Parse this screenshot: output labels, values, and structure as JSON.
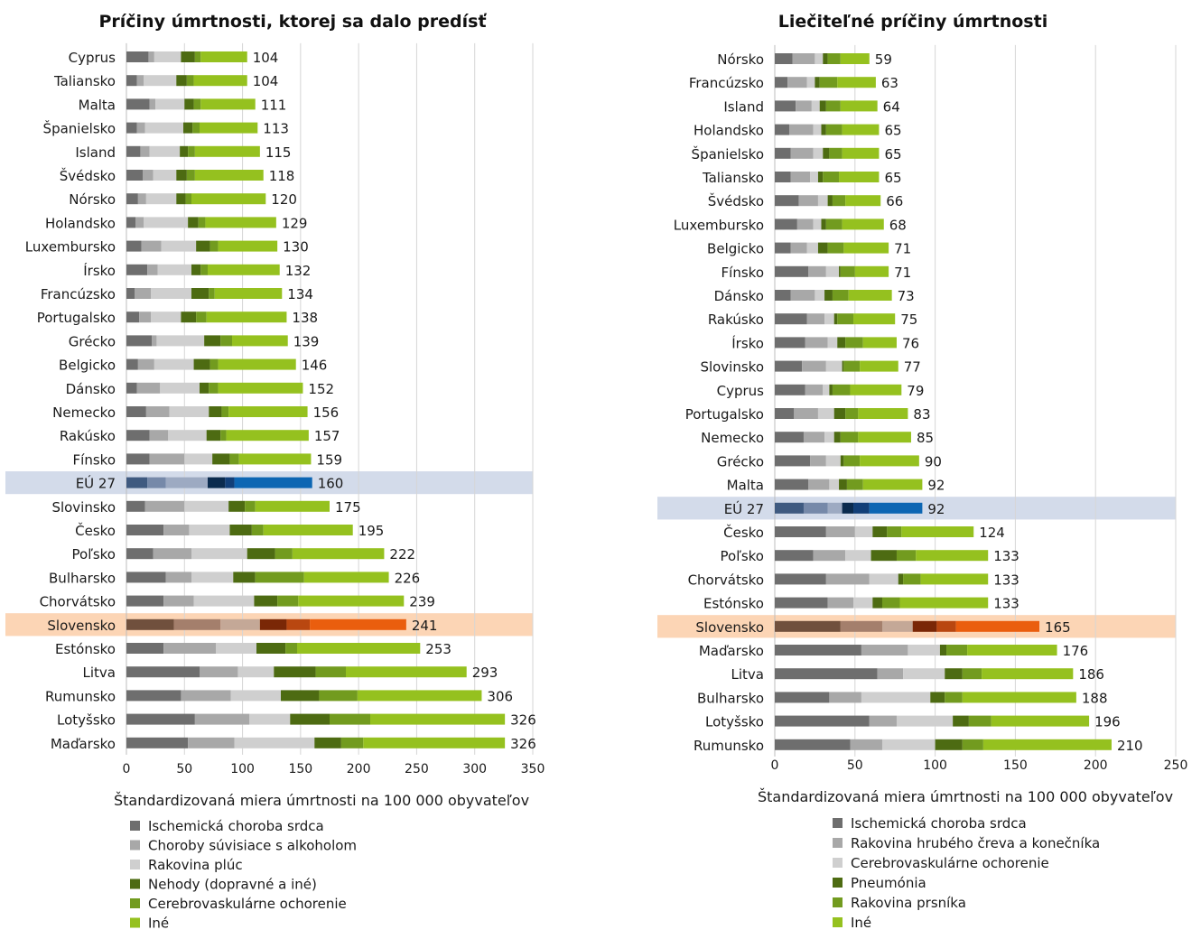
{
  "colors": {
    "series": [
      "#6e6e6e",
      "#a8a8a8",
      "#cfcfcf",
      "#4d6b12",
      "#729b1f",
      "#95c11f"
    ],
    "eu_series": [
      "#3f5a80",
      "#7689a9",
      "#9daac2",
      "#0b2b4e",
      "#123f78",
      "#0d66b3"
    ],
    "sk_series": [
      "#70503d",
      "#a47f6c",
      "#c4a897",
      "#7a2706",
      "#b94710",
      "#ea5e0e"
    ],
    "eu_band": "#d3dbea",
    "sk_band": "#fcd5b5",
    "grid": "#d6d6d6"
  },
  "chart_data": [
    {
      "type": "bar",
      "orientation": "horizontal",
      "stacked": true,
      "title": "Príčiny úmrtnosti, ktorej sa dalo predísť",
      "xlabel": "Štandardizovaná miera úmrtnosti na 100 000 obyvateľov",
      "xlim": [
        0,
        350
      ],
      "xticks": [
        0,
        50,
        100,
        150,
        200,
        250,
        300,
        350
      ],
      "grid": true,
      "legend": "bottom",
      "highlight": {
        "EÚ27": "eu",
        "Slovensko": "sk"
      },
      "categories": [
        "Cyprus",
        "Taliansko",
        "Malta",
        "Španielsko",
        "Island",
        "Švédsko",
        "Nórsko",
        "Holandsko",
        "Luxembursko",
        "Írsko",
        "Francúzsko",
        "Portugalsko",
        "Grécko",
        "Belgicko",
        "Dánsko",
        "Nemecko",
        "Rakúsko",
        "Fínsko",
        "EÚ27",
        "Slovinsko",
        "Česko",
        "Poľsko",
        "Bulharsko",
        "Chorvátsko",
        "Slovensko",
        "Estónsko",
        "Litva",
        "Rumunsko",
        "Lotyšsko",
        "Maďarsko"
      ],
      "category_labels": [
        "Cyprus",
        "Taliansko",
        "Malta",
        "Španielsko",
        "Island",
        "Švédsko",
        "Nórsko",
        "Holandsko",
        "Luxembursko",
        "Írsko",
        "Francúzsko",
        "Portugalsko",
        "Grécko",
        "Belgicko",
        "Dánsko",
        "Nemecko",
        "Rakúsko",
        "Fínsko",
        "EÚ 27",
        "Slovinsko",
        "Česko",
        "Poľsko",
        "Bulharsko",
        "Chorvátsko",
        "Slovensko",
        "Estónsko",
        "Litva",
        "Rumunsko",
        "Lotyšsko",
        "Maďarsko"
      ],
      "totals": [
        104,
        104,
        111,
        113,
        115,
        118,
        120,
        129,
        130,
        132,
        134,
        138,
        139,
        146,
        152,
        156,
        157,
        159,
        160,
        175,
        195,
        222,
        226,
        239,
        241,
        253,
        293,
        306,
        326,
        326
      ],
      "series": [
        {
          "name": "Ischemická choroba srdca",
          "values": [
            19,
            9,
            20,
            9,
            12,
            14,
            10,
            8,
            13,
            18,
            7,
            11,
            22,
            10,
            9,
            17,
            20,
            20,
            18,
            16,
            32,
            23,
            34,
            32,
            41,
            32,
            63,
            47,
            59,
            53
          ]
        },
        {
          "name": "Choroby súvisiace s alkoholom",
          "values": [
            5,
            6,
            5,
            7,
            8,
            9,
            7,
            7,
            17,
            9,
            14,
            10,
            4,
            14,
            20,
            20,
            16,
            30,
            16,
            34,
            22,
            33,
            22,
            26,
            40,
            45,
            33,
            43,
            47,
            40
          ]
        },
        {
          "name": "Rakovina plúc",
          "values": [
            23,
            28,
            25,
            33,
            26,
            20,
            26,
            38,
            30,
            29,
            35,
            26,
            41,
            34,
            34,
            34,
            33,
            24,
            36,
            38,
            35,
            48,
            36,
            52,
            34,
            35,
            31,
            43,
            35,
            69
          ]
        },
        {
          "name": "Nehody (dopravné a iné)",
          "values": [
            12,
            9,
            8,
            8,
            7,
            9,
            8,
            9,
            12,
            8,
            15,
            13,
            14,
            14,
            8,
            11,
            12,
            15,
            15,
            14,
            19,
            24,
            19,
            20,
            23,
            25,
            36,
            33,
            34,
            23
          ]
        },
        {
          "name": "Cerebrovaskulárne ochorenie",
          "values": [
            5,
            6,
            6,
            6,
            6,
            7,
            5,
            6,
            7,
            6,
            5,
            9,
            10,
            7,
            8,
            6,
            5,
            8,
            8,
            9,
            10,
            15,
            42,
            18,
            20,
            10,
            26,
            33,
            35,
            19
          ]
        },
        {
          "name": "Iné",
          "values": [
            40,
            46,
            47,
            50,
            56,
            59,
            64,
            61,
            51,
            62,
            58,
            69,
            48,
            67,
            73,
            68,
            71,
            62,
            67,
            64,
            77,
            79,
            73,
            91,
            83,
            106,
            104,
            107,
            116,
            122
          ]
        }
      ]
    },
    {
      "type": "bar",
      "orientation": "horizontal",
      "stacked": true,
      "title": "Liečiteľné príčiny úmrtnosti",
      "xlabel": "Štandardizovaná miera úmrtnosti na 100 000 obyvateľov",
      "xlim": [
        0,
        250
      ],
      "xticks": [
        0,
        50,
        100,
        150,
        200,
        250
      ],
      "grid": true,
      "legend": "bottom",
      "highlight": {
        "EÚ27": "eu",
        "Slovensko": "sk"
      },
      "categories": [
        "Nórsko",
        "Francúzsko",
        "Island",
        "Holandsko",
        "Španielsko",
        "Taliansko",
        "Švédsko",
        "Luxembursko",
        "Belgicko",
        "Fínsko",
        "Dánsko",
        "Rakúsko",
        "Írsko",
        "Slovinsko",
        "Cyprus",
        "Portugalsko",
        "Nemecko",
        "Grécko",
        "Malta",
        "EÚ27",
        "Česko",
        "Poľsko",
        "Chorvátsko",
        "Estónsko",
        "Slovensko",
        "Maďarsko",
        "Litva",
        "Bulharsko",
        "Lotyšsko",
        "Rumunsko"
      ],
      "category_labels": [
        "Nórsko",
        "Francúzsko",
        "Island",
        "Holandsko",
        "Španielsko",
        "Taliansko",
        "Švédsko",
        "Luxembursko",
        "Belgicko",
        "Fínsko",
        "Dánsko",
        "Rakúsko",
        "Írsko",
        "Slovinsko",
        "Cyprus",
        "Portugalsko",
        "Nemecko",
        "Grécko",
        "Malta",
        "EÚ 27",
        "Česko",
        "Poľsko",
        "Chorvátsko",
        "Estónsko",
        "Slovensko",
        "Maďarsko",
        "Litva",
        "Bulharsko",
        "Lotyšsko",
        "Rumunsko"
      ],
      "totals": [
        59,
        63,
        64,
        65,
        65,
        65,
        66,
        68,
        71,
        71,
        73,
        75,
        76,
        77,
        79,
        83,
        85,
        90,
        92,
        92,
        124,
        133,
        133,
        133,
        165,
        176,
        186,
        188,
        196,
        210
      ],
      "series": [
        {
          "name": "Ischemická choroba srdca",
          "values": [
            11,
            8,
            13,
            9,
            10,
            10,
            15,
            14,
            10,
            21,
            10,
            20,
            19,
            17,
            19,
            12,
            18,
            22,
            21,
            18,
            32,
            24,
            32,
            33,
            41,
            54,
            64,
            34,
            59,
            47
          ]
        },
        {
          "name": "Rakovina hrubého čreva a konečníka",
          "values": [
            14,
            12,
            10,
            15,
            14,
            12,
            12,
            10,
            10,
            11,
            15,
            11,
            14,
            15,
            11,
            15,
            13,
            10,
            13,
            15,
            18,
            20,
            27,
            16,
            26,
            29,
            16,
            20,
            17,
            20
          ]
        },
        {
          "name": "Cerebrovaskulárne ochorenie",
          "values": [
            5,
            5,
            5,
            5,
            6,
            5,
            6,
            5,
            7,
            8,
            6,
            6,
            6,
            10,
            4,
            10,
            6,
            9,
            6,
            9,
            11,
            16,
            18,
            12,
            19,
            20,
            26,
            43,
            35,
            33
          ]
        },
        {
          "name": "Pneumónia",
          "values": [
            3,
            3,
            4,
            3,
            4,
            3,
            3,
            3,
            6,
            1,
            5,
            2,
            5,
            1,
            2,
            7,
            4,
            2,
            5,
            7,
            9,
            16,
            3,
            6,
            15,
            4,
            11,
            9,
            10,
            17
          ]
        },
        {
          "name": "Rakovina prsníka",
          "values": [
            8,
            11,
            9,
            10,
            8,
            10,
            8,
            10,
            10,
            9,
            10,
            10,
            11,
            10,
            11,
            8,
            11,
            10,
            10,
            10,
            9,
            12,
            11,
            11,
            12,
            13,
            12,
            11,
            14,
            13
          ]
        },
        {
          "name": "Iné",
          "values": [
            18,
            24,
            23,
            23,
            23,
            25,
            22,
            26,
            28,
            21,
            27,
            26,
            21,
            24,
            32,
            31,
            33,
            37,
            37,
            33,
            45,
            45,
            42,
            55,
            52,
            56,
            57,
            71,
            61,
            80
          ]
        }
      ]
    }
  ]
}
